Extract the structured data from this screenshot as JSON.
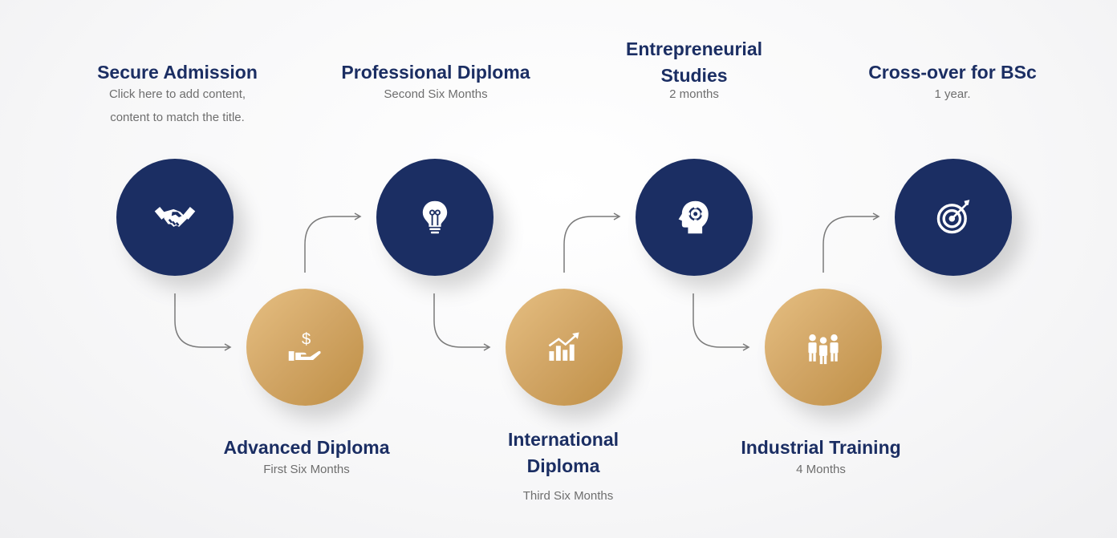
{
  "colors": {
    "navy": "#1b2e63",
    "gold": "#d1a565",
    "subtitle": "#6e6e6e",
    "arrow": "#7a7a7a"
  },
  "steps": [
    {
      "title": "Secure Admission",
      "subtitle_line1": "Click here to add content,",
      "subtitle_line2": "content to match the title.",
      "icon": "handshake-icon"
    },
    {
      "title": "Advanced Diploma",
      "subtitle": "First Six Months",
      "icon": "hand-money-icon"
    },
    {
      "title": "Professional Diploma",
      "subtitle": "Second Six Months",
      "icon": "lightbulb-icon"
    },
    {
      "title_line1": "International",
      "title_line2": "Diploma",
      "subtitle": "Third Six Months",
      "icon": "growth-chart-icon"
    },
    {
      "title_line1": "Entrepreneurial",
      "title_line2": "Studies",
      "subtitle": "2 months",
      "icon": "head-gear-icon"
    },
    {
      "title": "Industrial Training",
      "subtitle": "4 Months",
      "icon": "team-icon"
    },
    {
      "title": "Cross-over for BSc",
      "subtitle": "1 year.",
      "icon": "target-icon"
    }
  ]
}
